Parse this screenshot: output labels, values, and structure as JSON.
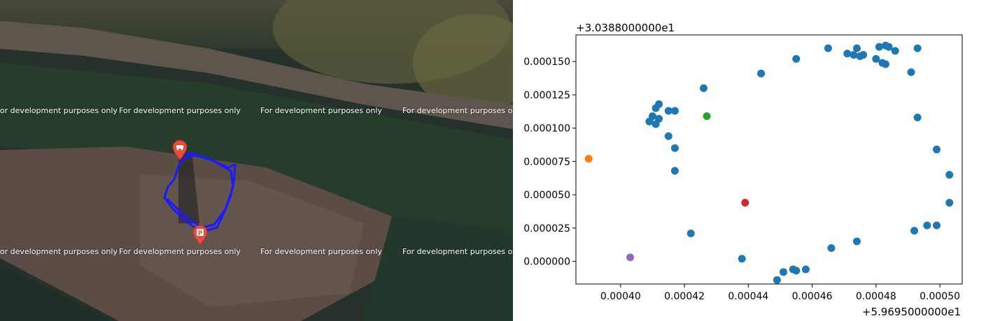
{
  "map": {
    "watermark_text": "For development purposes only",
    "watermark_rows": [
      [
        "For development purposes only",
        "For development purposes only",
        "For development purposes only",
        "For development purposes only"
      ],
      [
        "For development purposes only",
        "For development purposes only",
        "For development purposes only",
        "For development purposes only"
      ]
    ],
    "track_color": "#1a1aff",
    "pin_color": "#e74c3c",
    "start_pin_icon": "car-icon",
    "end_pin_icon": "parking-icon"
  },
  "chart_data": {
    "type": "scatter",
    "title": "",
    "xlabel": "",
    "ylabel": "",
    "x_offset_label": "+5.9695000000e1",
    "y_offset_label": "+3.0388000000e1",
    "xlim": [
      0.000386,
      0.000507
    ],
    "ylim": [
      -1.7e-05,
      0.00017
    ],
    "x_ticks": [
      0.0004,
      0.00042,
      0.00044,
      0.00046,
      0.00048,
      0.0005
    ],
    "x_tick_labels": [
      "0.00040",
      "0.00042",
      "0.00044",
      "0.00046",
      "0.00048",
      "0.00050"
    ],
    "y_ticks": [
      0.0,
      2.5e-05,
      5e-05,
      7.5e-05,
      0.0001,
      0.000125,
      0.00015
    ],
    "y_tick_labels": [
      "0.000000",
      "0.000025",
      "0.000050",
      "0.000075",
      "0.000100",
      "0.000125",
      "0.000150"
    ],
    "grid": false,
    "series": [
      {
        "color": "#1f77b4",
        "points": [
          [
            0.000409,
            0.000105
          ],
          [
            0.00041,
            0.000109
          ],
          [
            0.000411,
            0.000103
          ],
          [
            0.000412,
            0.000107
          ],
          [
            0.000411,
            0.000115
          ],
          [
            0.000412,
            0.000118
          ],
          [
            0.000415,
            0.000113
          ],
          [
            0.000417,
            0.000113
          ],
          [
            0.000415,
            9.4e-05
          ],
          [
            0.000417,
            8.5e-05
          ],
          [
            0.000417,
            6.8e-05
          ],
          [
            0.000422,
            2.1e-05
          ],
          [
            0.000426,
            0.00013
          ],
          [
            0.000438,
            2e-06
          ],
          [
            0.000444,
            0.000141
          ],
          [
            0.000449,
            -1.4e-05
          ],
          [
            0.000451,
            -8e-06
          ],
          [
            0.000454,
            -6e-06
          ],
          [
            0.000455,
            -7e-06
          ],
          [
            0.000458,
            -6e-06
          ],
          [
            0.000455,
            0.000152
          ],
          [
            0.000465,
            0.00016
          ],
          [
            0.000466,
            1e-05
          ],
          [
            0.000474,
            1.5e-05
          ],
          [
            0.000471,
            0.000156
          ],
          [
            0.000473,
            0.000155
          ],
          [
            0.000474,
            0.00016
          ],
          [
            0.000475,
            0.000154
          ],
          [
            0.000476,
            0.000155
          ],
          [
            0.00048,
            0.000152
          ],
          [
            0.000481,
            0.000161
          ],
          [
            0.000482,
            0.000149
          ],
          [
            0.000483,
            0.000162
          ],
          [
            0.000484,
            0.000161
          ],
          [
            0.000483,
            0.000148
          ],
          [
            0.000486,
            0.000158
          ],
          [
            0.000491,
            0.000142
          ],
          [
            0.000492,
            2.3e-05
          ],
          [
            0.000493,
            0.00016
          ],
          [
            0.000493,
            0.000108
          ],
          [
            0.000496,
            2.7e-05
          ],
          [
            0.000499,
            2.7e-05
          ],
          [
            0.000499,
            8.4e-05
          ],
          [
            0.000503,
            6.5e-05
          ],
          [
            0.000503,
            4.4e-05
          ]
        ]
      },
      {
        "color": "#ff7f0e",
        "points": [
          [
            0.00039,
            7.7e-05
          ]
        ]
      },
      {
        "color": "#2ca02c",
        "points": [
          [
            0.000427,
            0.000109
          ]
        ]
      },
      {
        "color": "#d62728",
        "points": [
          [
            0.000439,
            4.4e-05
          ]
        ]
      },
      {
        "color": "#9467bd",
        "points": [
          [
            0.000403,
            3e-06
          ]
        ]
      }
    ]
  }
}
